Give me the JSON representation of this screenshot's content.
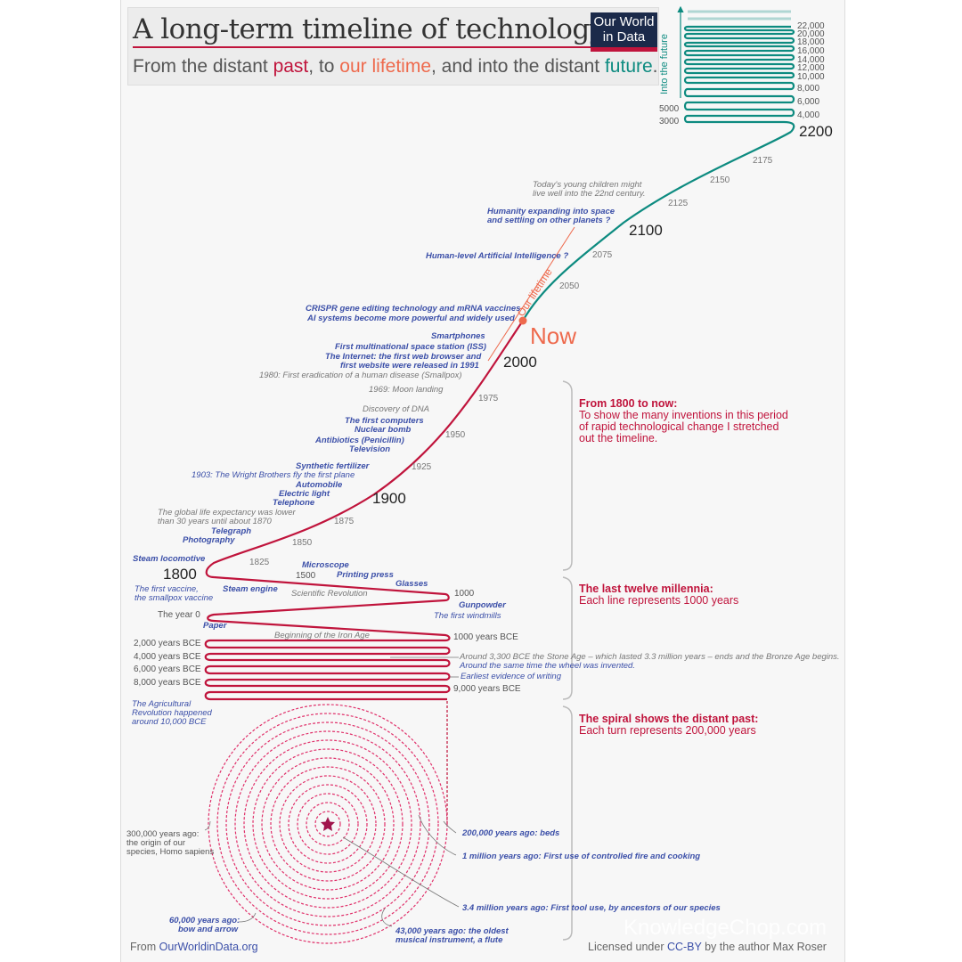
{
  "header": {
    "title": "A long-term timeline of technology",
    "subtitle_parts": [
      "From the distant ",
      "past",
      ", to ",
      "our lifetime",
      ", and into the distant ",
      "future",
      "."
    ],
    "logo": "Our World in Data"
  },
  "colors": {
    "past": "#c0143c",
    "lifetime": "#ee6a4d",
    "future": "#0d8b80",
    "event": "#3b4fa8"
  },
  "future_axis": {
    "label": "Into the future",
    "right_ticks": [
      "22,000",
      "20,000",
      "18,000",
      "16,000",
      "14,000",
      "12,000",
      "10,000",
      "8,000",
      "6,000",
      "4,000"
    ],
    "left_ticks": [
      "5000",
      "3000"
    ],
    "end_label": "2200"
  },
  "lifetime_label": "Our lifetime",
  "now_label": "Now",
  "years": {
    "y2175": "2175",
    "y2150": "2150",
    "y2125": "2125",
    "y2100": "2100",
    "y2075": "2075",
    "y2050": "2050",
    "y2000": "2000",
    "y1975": "1975",
    "y1950": "1950",
    "y1925": "1925",
    "y1900": "1900",
    "y1875": "1875",
    "y1850": "1850",
    "y1825": "1825",
    "y1800": "1800",
    "y1500": "1500",
    "y1000": "1000",
    "y0": "The year 0",
    "bce1000": "1000 years BCE",
    "bce2000": "2,000 years BCE",
    "bce4000": "4,000 years BCE",
    "bce6000": "6,000 years BCE",
    "bce8000": "8,000 years BCE",
    "bce9000": "9,000 years BCE"
  },
  "events": {
    "children": "Today's young children might",
    "children2": "live well into the 22nd century.",
    "space": "Humanity expanding into space",
    "space2": "and settling on other planets ?",
    "agi": "Human-level Artificial Intelligence ?",
    "crispr": "CRISPR gene editing technology and mRNA vaccines",
    "ai": "AI systems become more powerful and widely used",
    "smartphones": "Smartphones",
    "iss": "First multinational space station (ISS)",
    "internet": "The Internet: the first web browser and",
    "internet2": "first website were released in 1991",
    "smallpox": "1980: First eradication of a human disease (Smallpox)",
    "moon": "1969: Moon landing",
    "dna": "Discovery of DNA",
    "computers": "The first computers",
    "nuclear": "Nuclear bomb",
    "antibiotics": "Antibiotics (Penicillin)",
    "tv": "Television",
    "fertilizer": "Synthetic fertilizer",
    "plane": "1903: The Wright Brothers fly the first plane",
    "automobile": "Automobile",
    "light": "Electric light",
    "telephone": "Telephone",
    "lifeexp": "The global life expectancy was lower",
    "lifeexp2": "than 30 years until about 1870",
    "telegraph": "Telegraph",
    "photography": "Photography",
    "locomotive": "Steam locomotive",
    "vaccine": "The first vaccine,",
    "vaccine2": "the smallpox vaccine",
    "steamengine": "Steam engine",
    "microscope": "Microscope",
    "printing": "Printing press",
    "glasses": "Glasses",
    "scirev": "Scientific Revolution",
    "gunpowder": "Gunpowder",
    "windmills": "The first windmills",
    "paper": "Paper",
    "ironage": "Beginning of the Iron Age",
    "bronze": "Around 3,300 BCE the Stone Age – which lasted 3.3 million years – ends and the Bronze Age begins.",
    "wheel": "Around the same time the wheel was invented.",
    "writing": "Earliest evidence of writing",
    "agri": "The Agricultural",
    "agri2": "Revolution happened",
    "agri3": "around 10,000 BCE",
    "sapiens": "300,000 years ago:",
    "sapiens2": "the origin of our",
    "sapiens3": "species, Homo sapiens",
    "beds": "200,000 years ago: beds",
    "fire": "1 million years ago: First use of controlled fire and cooking",
    "tools": "3.4 million years ago: First tool use, by ancestors of our species",
    "bow": "60,000 years ago:",
    "bow2": "bow and arrow",
    "flute": "43,000 years ago: the oldest",
    "flute2": "musical instrument, a flute"
  },
  "notes": [
    {
      "heading": "From 1800 to now:",
      "body": [
        "To show the many inventions in this period",
        "of rapid technological change I stretched",
        "out the timeline."
      ]
    },
    {
      "heading": "The last twelve millennia:",
      "body": [
        "Each line represents 1000 years"
      ]
    },
    {
      "heading": "The spiral shows the distant past:",
      "body": [
        "Each turn represents 200,000 years"
      ]
    }
  ],
  "footer": {
    "from": "From ",
    "site": "OurWorldinData.org",
    "license_pre": "Licensed under ",
    "license": "CC-BY",
    "license_post": " by the author Max Roser"
  },
  "watermark": "KnowledgeChop.com"
}
